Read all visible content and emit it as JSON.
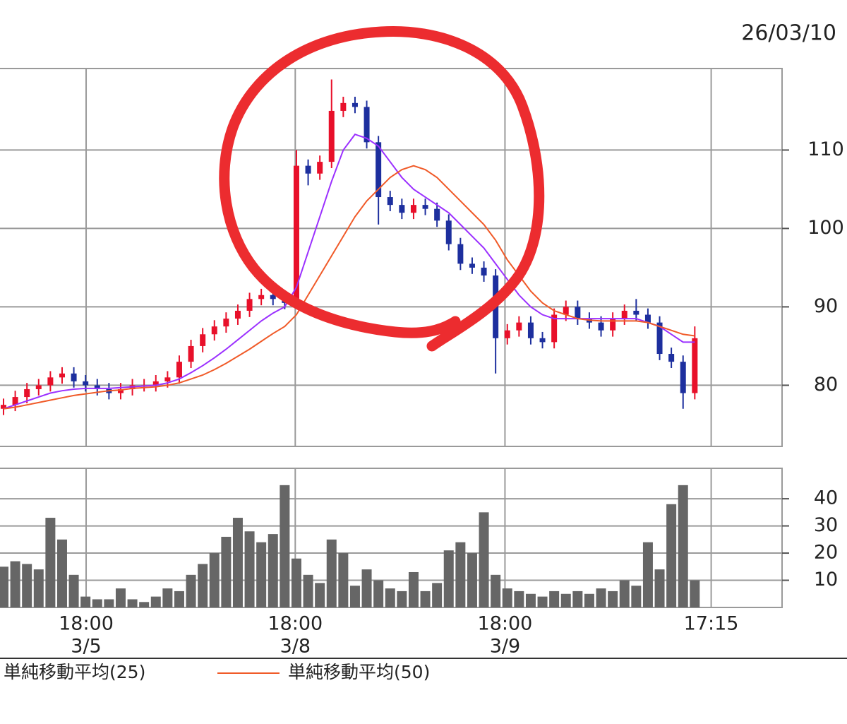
{
  "chart_data": [
    {
      "type": "candlestick",
      "title": "26/03/10",
      "x": [
        0,
        1,
        2,
        3,
        4,
        5,
        6,
        7,
        8,
        9,
        10,
        11,
        12,
        13,
        14,
        15,
        16,
        17,
        18,
        19,
        20,
        21,
        22,
        23,
        24,
        25,
        26,
        27,
        28,
        29,
        30,
        31,
        32,
        33,
        34,
        35,
        36,
        37,
        38,
        39,
        40,
        41,
        42,
        43,
        44,
        45,
        46,
        47,
        48,
        49,
        50,
        51,
        52,
        53,
        54,
        55,
        56,
        57,
        58,
        59
      ],
      "open": [
        77,
        77.5,
        78.5,
        79.5,
        80,
        81,
        81.5,
        80.5,
        80,
        79.5,
        79,
        79.5,
        80,
        80,
        80.5,
        81,
        83,
        85,
        86.5,
        87.5,
        88.5,
        89.5,
        91,
        91.5,
        91,
        90.5,
        108,
        107,
        108.5,
        115,
        116,
        115.5,
        111,
        104,
        103,
        102,
        103,
        102.5,
        101,
        98,
        95.5,
        95,
        94,
        86,
        87,
        88,
        86,
        85.5,
        89,
        90,
        88.5,
        88,
        87,
        88.5,
        89.5,
        89,
        88,
        84,
        83,
        79
      ],
      "high": [
        78.3,
        79.3,
        80.3,
        80.8,
        81.8,
        82.3,
        82.3,
        81.3,
        80.8,
        80.3,
        80.3,
        80.8,
        80.8,
        81.3,
        81.8,
        83.8,
        85.8,
        87.3,
        88.3,
        89.3,
        90.3,
        91.8,
        92.3,
        92.3,
        91.8,
        110,
        108.8,
        109.3,
        119,
        116.8,
        116.8,
        116.3,
        111.8,
        104.8,
        103.8,
        103.8,
        103.8,
        103.3,
        101.8,
        98.8,
        96.3,
        95.8,
        94.8,
        87.8,
        88.8,
        88.8,
        86.8,
        89.8,
        90.8,
        90.8,
        89.3,
        88.8,
        89.3,
        90.3,
        91,
        89.8,
        88.8,
        84.8,
        83.8,
        87.5
      ],
      "low": [
        76.2,
        76.7,
        77.7,
        78.7,
        79.2,
        80.2,
        79.7,
        79.2,
        78.7,
        78.2,
        78.2,
        78.7,
        79.2,
        79.2,
        79.7,
        80.2,
        82.2,
        84.2,
        85.7,
        86.7,
        87.7,
        88.7,
        90.2,
        90.2,
        89.7,
        89.7,
        105.5,
        106.2,
        107.7,
        114.2,
        114.7,
        110.2,
        100.5,
        102.2,
        101.2,
        101.2,
        101.7,
        100.2,
        97.2,
        94.7,
        94.2,
        93.2,
        81.5,
        85.2,
        86.2,
        85.2,
        84.7,
        84.7,
        88.2,
        87.7,
        87.2,
        86.2,
        86.2,
        87.7,
        88.2,
        87.2,
        83.2,
        82.2,
        77,
        78.2
      ],
      "close": [
        77.5,
        78.5,
        79.5,
        80,
        81,
        81.5,
        80.5,
        80,
        79.5,
        79,
        79.5,
        80,
        80,
        80.5,
        81,
        83,
        85,
        86.5,
        87.5,
        88.5,
        89.5,
        91,
        91.5,
        91,
        90.5,
        108,
        107,
        108.5,
        115,
        116,
        115.5,
        111,
        104,
        103,
        102,
        103,
        102.5,
        101,
        98,
        95.5,
        95,
        94,
        86,
        87,
        88,
        86,
        85.5,
        89,
        90,
        88.5,
        88,
        87,
        88.5,
        89.5,
        89,
        88,
        84,
        83,
        79,
        86
      ],
      "up_color": "#e8102a",
      "down_color": "#1d2f9e",
      "ma_series": [
        {
          "name": "単純移動平均(25)",
          "color": "#9b30ff",
          "values": [
            77,
            77.5,
            78,
            78.5,
            79,
            79.3,
            79.5,
            79.6,
            79.6,
            79.6,
            79.7,
            79.8,
            79.9,
            80,
            80.3,
            80.8,
            81.6,
            82.5,
            83.5,
            84.6,
            85.8,
            87,
            88.2,
            89.2,
            90,
            92.5,
            97,
            101.5,
            106,
            110,
            112,
            111.5,
            110.5,
            108.5,
            106.5,
            105,
            104,
            103,
            102,
            100.5,
            99,
            97.5,
            95.5,
            93.5,
            91.5,
            90,
            89,
            88.5,
            88.5,
            88.5,
            88.5,
            88.5,
            88.5,
            88.5,
            88.5,
            88,
            87.5,
            86.5,
            85.5,
            85.5
          ]
        },
        {
          "name": "単純移動平均(50)",
          "color": "#f05a28",
          "values": [
            77,
            77.2,
            77.5,
            77.8,
            78.1,
            78.4,
            78.7,
            78.9,
            79.1,
            79.3,
            79.4,
            79.6,
            79.7,
            79.8,
            80,
            80.3,
            80.8,
            81.3,
            82,
            82.8,
            83.7,
            84.6,
            85.6,
            86.6,
            87.5,
            89,
            91.5,
            94,
            96.5,
            99,
            101.5,
            103.5,
            105,
            106.5,
            107.5,
            108,
            107.5,
            106.5,
            105,
            103.5,
            102,
            100.5,
            98.5,
            96,
            94,
            92,
            90.5,
            89.5,
            89,
            88.5,
            88.3,
            88.2,
            88.2,
            88.2,
            88.2,
            88,
            87.5,
            87,
            86.5,
            86.3
          ]
        }
      ],
      "xlim": [
        -0.3,
        66.45
      ],
      "xticks": [
        7.05,
        24.9,
        42.8,
        60.4
      ],
      "ylim": [
        72.2,
        120.4
      ],
      "yticks": [
        80,
        90,
        100,
        110
      ],
      "grid": true
    },
    {
      "type": "bar",
      "x": [
        0,
        1,
        2,
        3,
        4,
        5,
        6,
        7,
        8,
        9,
        10,
        11,
        12,
        13,
        14,
        15,
        16,
        17,
        18,
        19,
        20,
        21,
        22,
        23,
        24,
        25,
        26,
        27,
        28,
        29,
        30,
        31,
        32,
        33,
        34,
        35,
        36,
        37,
        38,
        39,
        40,
        41,
        42,
        43,
        44,
        45,
        46,
        47,
        48,
        49,
        50,
        51,
        52,
        53,
        54,
        55,
        56,
        57,
        58,
        59
      ],
      "values": [
        15,
        17,
        16,
        14,
        33,
        25,
        12,
        4,
        3,
        3,
        7,
        3,
        2,
        4,
        7,
        6,
        12,
        16,
        20,
        26,
        33,
        28,
        24,
        27,
        45,
        18,
        12,
        9,
        25,
        20,
        8,
        14,
        10,
        7,
        6,
        13,
        6,
        9,
        21,
        24,
        20,
        35,
        12,
        7,
        6,
        5,
        4,
        6,
        5,
        6,
        5,
        7,
        6,
        10,
        8,
        24,
        14,
        38,
        45,
        10
      ],
      "color": "#666666",
      "xlim": [
        -0.3,
        66.45
      ],
      "xticks": [
        {
          "value": 7.05,
          "label": "18:00"
        },
        {
          "value": 24.9,
          "label": "18:00"
        },
        {
          "value": 42.8,
          "label": "18:00"
        },
        {
          "value": 60.4,
          "label": "17:15"
        }
      ],
      "xtick_dates": [
        "3/5",
        "3/8",
        "3/9",
        null
      ],
      "ylim": [
        0,
        51.2
      ],
      "yticks": [
        10,
        20,
        30,
        40
      ],
      "grid": true
    }
  ]
}
